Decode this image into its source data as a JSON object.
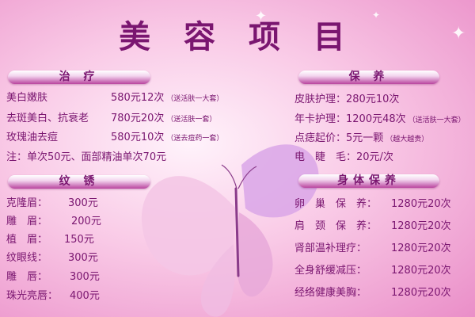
{
  "title": "美 容 项 目",
  "left": {
    "treatment": {
      "header": "治 疗",
      "rows": [
        {
          "name": "美白嫩肤",
          "price": "580元12次",
          "note": "（送活肤一大套）"
        },
        {
          "name": "去斑美白、抗衰老",
          "price": "780元20次",
          "note": "（送活肤一套）"
        },
        {
          "name": "玫瑰油去痘",
          "price": "580元10次",
          "note": "（送去痘药一套）"
        }
      ],
      "footer": "注：单次50元、面部精油单次70元"
    },
    "embroidery": {
      "header": "纹 锈",
      "rows": [
        {
          "name": "克隆眉：",
          "price": "300元"
        },
        {
          "name": "雕　眉：",
          "price": "200元"
        },
        {
          "name": "植　眉：",
          "price": "150元"
        },
        {
          "name": "纹眼线：",
          "price": "300元"
        },
        {
          "name": "雕　唇：",
          "price": "300元"
        },
        {
          "name": "珠光亮唇：",
          "price": "400元"
        }
      ]
    }
  },
  "right": {
    "care": {
      "header": "保 养",
      "rows": [
        {
          "name": "皮肤护理：",
          "price": "280元10次",
          "note": ""
        },
        {
          "name": "年卡护理：",
          "price": "1200元48次",
          "note": "（送活肤一大套）"
        },
        {
          "name": "点痣起价：",
          "price": "5元一颗",
          "note": "（越大越贵）"
        },
        {
          "name": "电　睫　毛：",
          "price": "20元/次",
          "note": ""
        }
      ]
    },
    "body": {
      "header": "身体保养",
      "rows": [
        {
          "name": "卵　巢　保　养：",
          "price": "1280元20次"
        },
        {
          "name": "肩　颈　保　养：",
          "price": "1280元20次"
        },
        {
          "name": "肾部温补理疗：",
          "price": "1280元20次"
        },
        {
          "name": "全身舒缓减压：",
          "price": "1280元20次"
        },
        {
          "name": "经络健康美胸：",
          "price": "1280元20次"
        }
      ]
    }
  },
  "decor": {
    "butterfly_icon": "butterfly-icon",
    "sparkle_icon": "sparkle-icon"
  },
  "colors": {
    "text": "#7a1670",
    "header_dark": "#b9459f",
    "bg_light": "#fff3fb",
    "bg_dark": "#ea8ec8"
  }
}
